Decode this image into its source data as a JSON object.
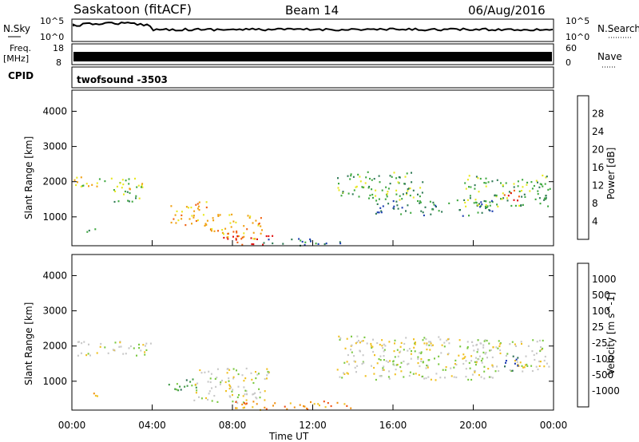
{
  "header": {
    "site": "Saskatoon (fitACF)",
    "beam": "Beam 14",
    "date": "06/Aug/2016"
  },
  "top_panels": {
    "nsky_label": "N.Sky",
    "nsearch_label": "N.Search",
    "nsky_ticks": [
      "10^5",
      "10^0"
    ],
    "nsearch_ticks": [
      "10^5",
      "10^0"
    ],
    "freq_label": "Freq.",
    "freq_unit": "[MHz]",
    "freq_ticks": [
      "18",
      "8"
    ],
    "nave_label": "Nave",
    "nave_ticks": [
      "60",
      "0"
    ],
    "cpid_label": "CPID",
    "cpid_value": "twofsound -3503"
  },
  "chart_data": [
    {
      "type": "heatmap",
      "panel": "power",
      "ylabel": "Slant Range [km]",
      "xlabel": "",
      "x_ticks": [
        "00:00",
        "04:00",
        "08:00",
        "12:00",
        "16:00",
        "20:00",
        "00:00"
      ],
      "xlim_hours": [
        0,
        24
      ],
      "ylim_km": [
        180,
        4600
      ],
      "y_ticks": [
        1000,
        2000,
        3000,
        4000
      ],
      "colorbar": {
        "label": "Power [dB]",
        "ticks": [
          "4",
          "8",
          "12",
          "16",
          "20",
          "24",
          "28"
        ],
        "colors": [
          "#1a2bff",
          "#1e40b0",
          "#2f7a55",
          "#3fa840",
          "#e8e820",
          "#f0a010",
          "#f06010",
          "#e01010"
        ]
      },
      "echo_regions": [
        {
          "t0": 0.0,
          "t1": 3.9,
          "r0": 1800,
          "r1": 2150,
          "level": 4
        },
        {
          "t0": 2.0,
          "t1": 3.4,
          "r0": 1450,
          "r1": 1850,
          "level": 3
        },
        {
          "t0": 0.7,
          "t1": 1.3,
          "r0": 550,
          "r1": 750,
          "level": 3
        },
        {
          "t0": 4.8,
          "t1": 6.8,
          "r0": 750,
          "r1": 1450,
          "level": 5
        },
        {
          "t0": 6.8,
          "t1": 9.5,
          "r0": 400,
          "r1": 1100,
          "level": 5
        },
        {
          "t0": 7.5,
          "t1": 10.2,
          "r0": 200,
          "r1": 500,
          "level": 6
        },
        {
          "t0": 9.5,
          "t1": 13.5,
          "r0": 200,
          "r1": 400,
          "level": 2
        },
        {
          "t0": 13.2,
          "t1": 17.5,
          "r0": 1500,
          "r1": 2300,
          "level": 3
        },
        {
          "t0": 15.0,
          "t1": 21.0,
          "r0": 1050,
          "r1": 1500,
          "level": 2
        },
        {
          "t0": 19.5,
          "t1": 23.8,
          "r0": 1300,
          "r1": 2200,
          "level": 3
        },
        {
          "t0": 21.5,
          "t1": 22.3,
          "r0": 1450,
          "r1": 1800,
          "level": 7
        }
      ]
    },
    {
      "type": "heatmap",
      "panel": "velocity",
      "ylabel": "Slant Range [km]",
      "xlabel": "Time UT",
      "x_ticks": [
        "00:00",
        "04:00",
        "08:00",
        "12:00",
        "16:00",
        "20:00",
        "00:00"
      ],
      "xlim_hours": [
        0,
        24
      ],
      "ylim_km": [
        180,
        4600
      ],
      "y_ticks": [
        1000,
        2000,
        3000,
        4000
      ],
      "colorbar": {
        "label": "Velocity [m s^-1]",
        "ticks": [
          "1000",
          "500",
          "100",
          "25",
          "-25",
          "-100",
          "-500",
          "-1000"
        ],
        "colors": [
          "#1e3cb4",
          "#2f6e55",
          "#3f9a45",
          "#7ac840",
          "#c8c8c8",
          "#f0c020",
          "#f09010",
          "#f05010",
          "#e01010"
        ]
      },
      "echo_regions": [
        {
          "t0": 0.0,
          "t1": 3.9,
          "r0": 1750,
          "r1": 2150,
          "level": 4
        },
        {
          "t0": 0.7,
          "t1": 1.3,
          "r0": 550,
          "r1": 750,
          "level": 5
        },
        {
          "t0": 4.8,
          "t1": 6.5,
          "r0": 750,
          "r1": 1100,
          "level": 2
        },
        {
          "t0": 6.0,
          "t1": 9.8,
          "r0": 400,
          "r1": 1400,
          "level": 4
        },
        {
          "t0": 8.0,
          "t1": 14.0,
          "r0": 200,
          "r1": 450,
          "level": 6
        },
        {
          "t0": 13.2,
          "t1": 21.0,
          "r0": 1050,
          "r1": 2300,
          "level": 4
        },
        {
          "t0": 20.0,
          "t1": 23.8,
          "r0": 1300,
          "r1": 2200,
          "level": 4
        },
        {
          "t0": 21.5,
          "t1": 22.2,
          "r0": 1300,
          "r1": 1800,
          "level": 0
        }
      ]
    }
  ]
}
